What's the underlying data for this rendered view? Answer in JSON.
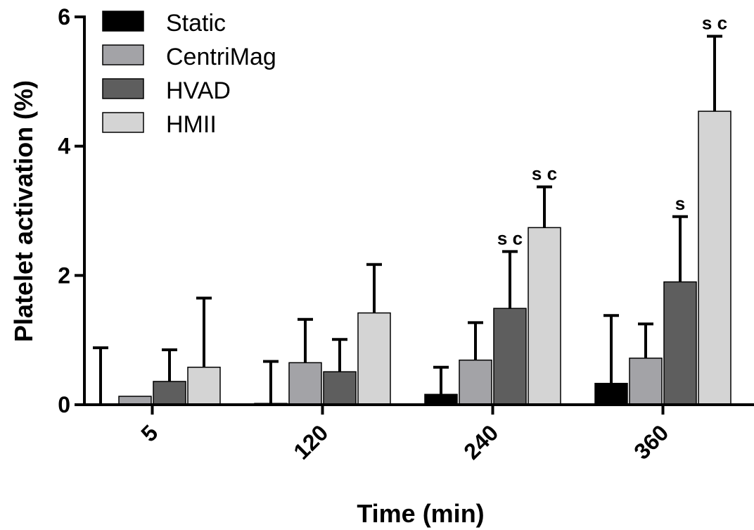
{
  "chart_data": {
    "type": "bar",
    "title": "",
    "xlabel": "Time (min)",
    "ylabel": "Platelet activation (%)",
    "ylim": [
      0,
      6
    ],
    "yticks": [
      0,
      2,
      4,
      6
    ],
    "categories": [
      "5",
      "120",
      "240",
      "360"
    ],
    "series": [
      {
        "name": "Static",
        "color": "#000000",
        "values": [
          0.0,
          0.02,
          0.16,
          0.33
        ],
        "error": [
          0.88,
          0.65,
          0.42,
          1.05
        ]
      },
      {
        "name": "CentriMag",
        "color": "#a3a3a7",
        "values": [
          0.13,
          0.65,
          0.69,
          0.72
        ],
        "error": [
          0.0,
          0.67,
          0.58,
          0.53
        ]
      },
      {
        "name": "HVAD",
        "color": "#5e5e5e",
        "values": [
          0.36,
          0.51,
          1.49,
          1.9
        ],
        "error": [
          0.49,
          0.5,
          0.88,
          1.01
        ]
      },
      {
        "name": "HMII",
        "color": "#d4d4d4",
        "values": [
          0.58,
          1.42,
          2.74,
          4.54
        ],
        "error": [
          1.07,
          0.75,
          0.63,
          1.16
        ]
      }
    ],
    "annotations": [
      {
        "category": "240",
        "series": "HVAD",
        "text": "s c"
      },
      {
        "category": "240",
        "series": "HMII",
        "text": "s c"
      },
      {
        "category": "360",
        "series": "HVAD",
        "text": "s"
      },
      {
        "category": "360",
        "series": "HMII",
        "text": "s c"
      }
    ],
    "legend": {
      "placement": "top-left"
    },
    "grid": false
  }
}
